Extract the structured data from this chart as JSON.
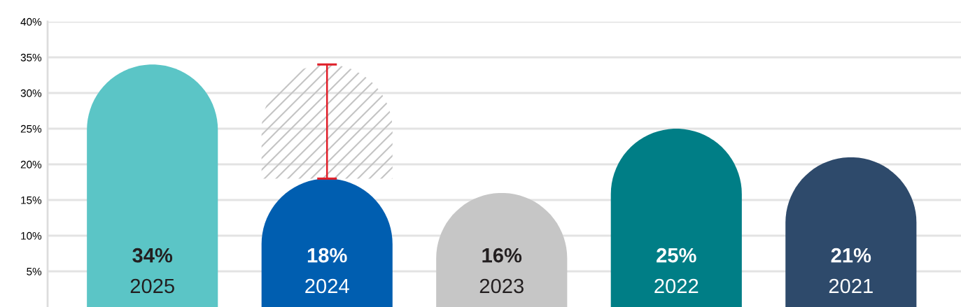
{
  "chart_data": {
    "type": "bar",
    "stacked": true,
    "categories": [
      "2025",
      "2024",
      "2023",
      "2022",
      "2021"
    ],
    "series": [
      {
        "colors": [
          "#5bc5c6",
          "#005eb0",
          "#c6c6c6",
          "#007e86",
          "#2e4a6b"
        ],
        "values": [
          34,
          18,
          16,
          25,
          21
        ],
        "value_labels": [
          "34%",
          "18%",
          "16%",
          "25%",
          "21%"
        ],
        "errors": [
          null,
          [
            18,
            34
          ],
          null,
          null,
          null
        ]
      },
      {
        "color": "#c4c4c4",
        "values": [
          null,
          16,
          null,
          null,
          null
        ]
      }
    ],
    "ylim": [
      0,
      40
    ],
    "yticks": [
      {
        "value": 5,
        "label": "5%"
      },
      {
        "value": 10,
        "label": "10%"
      },
      {
        "value": 15,
        "label": "15%"
      },
      {
        "value": 20,
        "label": "20%"
      },
      {
        "value": 25,
        "label": "25%"
      },
      {
        "value": 30,
        "label": "30%"
      },
      {
        "value": 35,
        "label": "35%"
      },
      {
        "value": 40,
        "label": "40%"
      }
    ],
    "grid": "y",
    "legend": false
  }
}
